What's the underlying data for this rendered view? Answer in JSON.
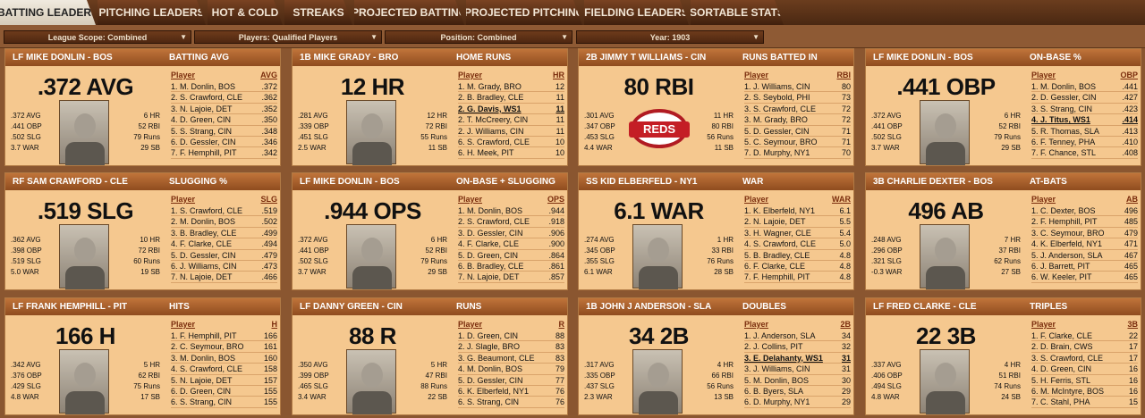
{
  "tabs": [
    "BATTING LEADERS",
    "PITCHING LEADERS",
    "HOT & COLD",
    "STREAKS",
    "PROJECTED BATTING",
    "PROJECTED PITCHING",
    "FIELDING LEADERS",
    "SORTABLE STATS"
  ],
  "filters": [
    "League Scope: Combined",
    "Players: Qualified Players",
    "Position: Combined",
    "Year: 1903"
  ],
  "cards": [
    {
      "player": "LF MIKE DONLIN - BOS",
      "stat": "BATTING AVG",
      "big": ".372 AVG",
      "img": "photo",
      "left": [
        ".372 AVG",
        ".441 OBP",
        ".502 SLG",
        "3.7 WAR"
      ],
      "right": [
        "6 HR",
        "52 RBI",
        "79 Runs",
        "29 SB"
      ],
      "col": "AVG",
      "rows": [
        [
          "1. M. Donlin, BOS",
          ".372"
        ],
        [
          "2. S. Crawford, CLE",
          ".362"
        ],
        [
          "3. N. Lajoie, DET",
          ".352"
        ],
        [
          "4. D. Green, CIN",
          ".350"
        ],
        [
          "5. S. Strang, CIN",
          ".348"
        ],
        [
          "6. D. Gessler, CIN",
          ".346"
        ],
        [
          "7. F. Hemphill, PIT",
          ".342"
        ]
      ],
      "hl": -1
    },
    {
      "player": "1B MIKE GRADY - BRO",
      "stat": "HOME RUNS",
      "big": "12 HR",
      "img": "photo",
      "left": [
        ".281 AVG",
        ".339 OBP",
        ".451 SLG",
        "2.5 WAR"
      ],
      "right": [
        "12 HR",
        "72 RBI",
        "55 Runs",
        "11 SB"
      ],
      "col": "HR",
      "rows": [
        [
          "1. M. Grady, BRO",
          "12"
        ],
        [
          "2. B. Bradley, CLE",
          "11"
        ],
        [
          "2. G. Davis, WS1",
          "11"
        ],
        [
          "2. T. McCreery, CIN",
          "11"
        ],
        [
          "2. J. Williams, CIN",
          "11"
        ],
        [
          "6. S. Crawford, CLE",
          "10"
        ],
        [
          "6. H. Meek, PIT",
          "10"
        ]
      ],
      "hl": 2
    },
    {
      "player": "2B JIMMY T WILLIAMS - CIN",
      "stat": "RUNS BATTED IN",
      "big": "80 RBI",
      "img": "logo",
      "logo_text": "REDS",
      "left": [
        ".301 AVG",
        ".347 OBP",
        ".453 SLG",
        "4.4 WAR"
      ],
      "right": [
        "11 HR",
        "80 RBI",
        "56 Runs",
        "11 SB"
      ],
      "col": "RBI",
      "rows": [
        [
          "1. J. Williams, CIN",
          "80"
        ],
        [
          "2. S. Seybold, PHI",
          "73"
        ],
        [
          "3. S. Crawford, CLE",
          "72"
        ],
        [
          "3. M. Grady, BRO",
          "72"
        ],
        [
          "5. D. Gessler, CIN",
          "71"
        ],
        [
          "5. C. Seymour, BRO",
          "71"
        ],
        [
          "7. D. Murphy, NY1",
          "70"
        ]
      ],
      "hl": -1
    },
    {
      "player": "LF MIKE DONLIN - BOS",
      "stat": "ON-BASE %",
      "big": ".441 OBP",
      "img": "photo",
      "left": [
        ".372 AVG",
        ".441 OBP",
        ".502 SLG",
        "3.7 WAR"
      ],
      "right": [
        "6 HR",
        "52 RBI",
        "79 Runs",
        "29 SB"
      ],
      "col": "OBP",
      "rows": [
        [
          "1. M. Donlin, BOS",
          ".441"
        ],
        [
          "2. D. Gessler, CIN",
          ".427"
        ],
        [
          "3. S. Strang, CIN",
          ".423"
        ],
        [
          "4. J. Titus, WS1",
          ".414"
        ],
        [
          "5. R. Thomas, SLA",
          ".413"
        ],
        [
          "6. F. Tenney, PHA",
          ".410"
        ],
        [
          "7. F. Chance, STL",
          ".408"
        ]
      ],
      "hl": 3
    },
    {
      "player": "RF SAM CRAWFORD - CLE",
      "stat": "SLUGGING %",
      "big": ".519 SLG",
      "img": "photo",
      "left": [
        ".362 AVG",
        ".398 OBP",
        ".519 SLG",
        "5.0 WAR"
      ],
      "right": [
        "10 HR",
        "72 RBI",
        "60 Runs",
        "19 SB"
      ],
      "col": "SLG",
      "rows": [
        [
          "1. S. Crawford, CLE",
          ".519"
        ],
        [
          "2. M. Donlin, BOS",
          ".502"
        ],
        [
          "3. B. Bradley, CLE",
          ".499"
        ],
        [
          "4. F. Clarke, CLE",
          ".494"
        ],
        [
          "5. D. Gessler, CIN",
          ".479"
        ],
        [
          "6. J. Williams, CIN",
          ".473"
        ],
        [
          "7. N. Lajoie, DET",
          ".466"
        ]
      ],
      "hl": -1
    },
    {
      "player": "LF MIKE DONLIN - BOS",
      "stat": "ON-BASE + SLUGGING",
      "big": ".944 OPS",
      "img": "photo",
      "left": [
        ".372 AVG",
        ".441 OBP",
        ".502 SLG",
        "3.7 WAR"
      ],
      "right": [
        "6 HR",
        "52 RBI",
        "79 Runs",
        "29 SB"
      ],
      "col": "OPS",
      "rows": [
        [
          "1. M. Donlin, BOS",
          ".944"
        ],
        [
          "2. S. Crawford, CLE",
          ".918"
        ],
        [
          "3. D. Gessler, CIN",
          ".906"
        ],
        [
          "4. F. Clarke, CLE",
          ".900"
        ],
        [
          "5. D. Green, CIN",
          ".864"
        ],
        [
          "6. B. Bradley, CLE",
          ".861"
        ],
        [
          "7. N. Lajoie, DET",
          ".857"
        ]
      ],
      "hl": -1
    },
    {
      "player": "SS KID ELBERFELD - NY1",
      "stat": "WAR",
      "big": "6.1 WAR",
      "img": "photo",
      "left": [
        ".274 AVG",
        ".345 OBP",
        ".355 SLG",
        "6.1 WAR"
      ],
      "right": [
        "1 HR",
        "33 RBI",
        "76 Runs",
        "28 SB"
      ],
      "col": "WAR",
      "rows": [
        [
          "1. K. Elberfeld, NY1",
          "6.1"
        ],
        [
          "2. N. Lajoie, DET",
          "5.5"
        ],
        [
          "3. H. Wagner, CLE",
          "5.4"
        ],
        [
          "4. S. Crawford, CLE",
          "5.0"
        ],
        [
          "5. B. Bradley, CLE",
          "4.8"
        ],
        [
          "6. F. Clarke, CLE",
          "4.8"
        ],
        [
          "7. F. Hemphill, PIT",
          "4.8"
        ]
      ],
      "hl": -1
    },
    {
      "player": "3B CHARLIE DEXTER - BOS",
      "stat": "AT-BATS",
      "big": "496 AB",
      "img": "photo",
      "left": [
        ".248 AVG",
        ".296 OBP",
        ".321 SLG",
        "-0.3 WAR"
      ],
      "right": [
        "7 HR",
        "37 RBI",
        "62 Runs",
        "27 SB"
      ],
      "col": "AB",
      "rows": [
        [
          "1. C. Dexter, BOS",
          "496"
        ],
        [
          "2. F. Hemphill, PIT",
          "485"
        ],
        [
          "3. C. Seymour, BRO",
          "479"
        ],
        [
          "4. K. Elberfeld, NY1",
          "471"
        ],
        [
          "5. J. Anderson, SLA",
          "467"
        ],
        [
          "6. J. Barrett, PIT",
          "465"
        ],
        [
          "6. W. Keeler, PIT",
          "465"
        ]
      ],
      "hl": -1
    },
    {
      "player": "LF FRANK HEMPHILL - PIT",
      "stat": "HITS",
      "big": "166 H",
      "img": "photo",
      "left": [
        ".342 AVG",
        ".376 OBP",
        ".429 SLG",
        "4.8 WAR"
      ],
      "right": [
        "5 HR",
        "62 RBI",
        "75 Runs",
        "17 SB"
      ],
      "col": "H",
      "rows": [
        [
          "1. F. Hemphill, PIT",
          "166"
        ],
        [
          "2. C. Seymour, BRO",
          "161"
        ],
        [
          "3. M. Donlin, BOS",
          "160"
        ],
        [
          "4. S. Crawford, CLE",
          "158"
        ],
        [
          "5. N. Lajoie, DET",
          "157"
        ],
        [
          "6. D. Green, CIN",
          "155"
        ],
        [
          "6. S. Strang, CIN",
          "155"
        ]
      ],
      "hl": -1
    },
    {
      "player": "LF DANNY GREEN - CIN",
      "stat": "RUNS",
      "big": "88 R",
      "img": "photo",
      "left": [
        ".350 AVG",
        ".399 OBP",
        ".465 SLG",
        "3.4 WAR"
      ],
      "right": [
        "5 HR",
        "47 RBI",
        "88 Runs",
        "22 SB"
      ],
      "col": "R",
      "rows": [
        [
          "1. D. Green, CIN",
          "88"
        ],
        [
          "2. J. Slagle, BRO",
          "83"
        ],
        [
          "3. G. Beaumont, CLE",
          "83"
        ],
        [
          "4. M. Donlin, BOS",
          "79"
        ],
        [
          "5. D. Gessler, CIN",
          "77"
        ],
        [
          "6. K. Elberfeld, NY1",
          "76"
        ],
        [
          "6. S. Strang, CIN",
          "76"
        ]
      ],
      "hl": -1
    },
    {
      "player": "1B JOHN J ANDERSON - SLA",
      "stat": "DOUBLES",
      "big": "34 2B",
      "img": "photo",
      "left": [
        ".317 AVG",
        ".335 OBP",
        ".437 SLG",
        "2.3 WAR"
      ],
      "right": [
        "4 HR",
        "66 RBI",
        "56 Runs",
        "13 SB"
      ],
      "col": "2B",
      "rows": [
        [
          "1. J. Anderson, SLA",
          "34"
        ],
        [
          "2. J. Collins, PIT",
          "32"
        ],
        [
          "3. E. Delahanty, WS1",
          "31"
        ],
        [
          "3. J. Williams, CIN",
          "31"
        ],
        [
          "5. M. Donlin, BOS",
          "30"
        ],
        [
          "6. B. Byers, SLA",
          "29"
        ],
        [
          "6. D. Murphy, NY1",
          "29"
        ]
      ],
      "hl": 2
    },
    {
      "player": "LF FRED CLARKE - CLE",
      "stat": "TRIPLES",
      "big": "22 3B",
      "img": "photo",
      "left": [
        ".337 AVG",
        ".406 OBP",
        ".494 SLG",
        "4.8 WAR"
      ],
      "right": [
        "4 HR",
        "51 RBI",
        "74 Runs",
        "24 SB"
      ],
      "col": "3B",
      "rows": [
        [
          "1. F. Clarke, CLE",
          "22"
        ],
        [
          "2. D. Brain, CWS",
          "17"
        ],
        [
          "3. S. Crawford, CLE",
          "17"
        ],
        [
          "4. D. Green, CIN",
          "16"
        ],
        [
          "5. H. Ferris, STL",
          "16"
        ],
        [
          "6. M. McIntyre, BOS",
          "16"
        ],
        [
          "7. C. Stahl, PHA",
          "15"
        ]
      ],
      "hl": -1
    }
  ]
}
